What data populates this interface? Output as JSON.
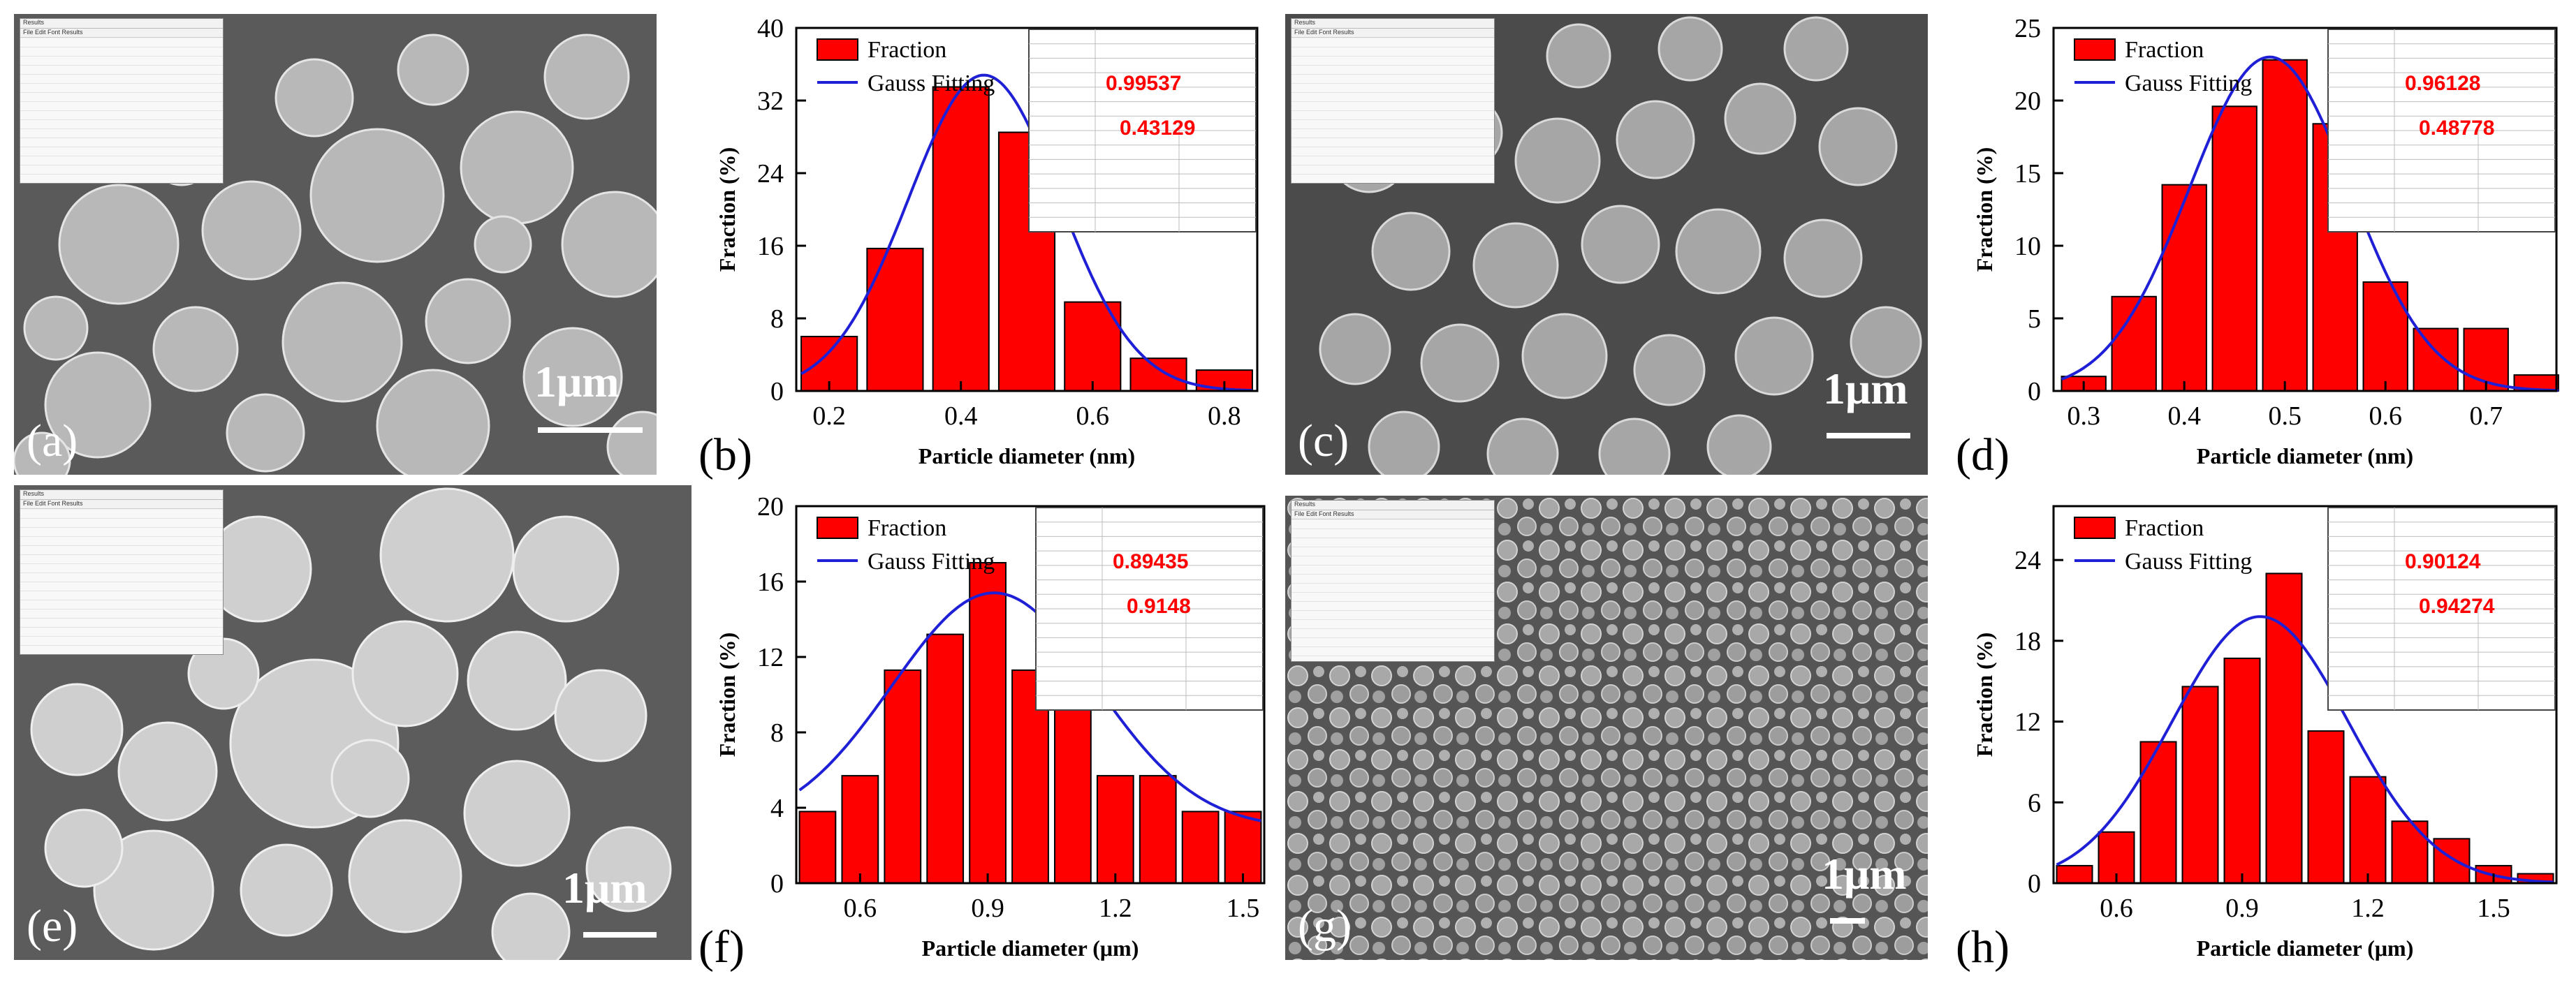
{
  "panels": [
    {
      "id": "a",
      "type": "sem",
      "label": "(a)",
      "scale_text": "1μm"
    },
    {
      "id": "b",
      "type": "chart",
      "label": "(b)"
    },
    {
      "id": "c",
      "type": "sem",
      "label": "(c)",
      "scale_text": "1μm"
    },
    {
      "id": "d",
      "type": "chart",
      "label": "(d)"
    },
    {
      "id": "e",
      "type": "sem",
      "label": "(e)",
      "scale_text": "1μm"
    },
    {
      "id": "f",
      "type": "chart",
      "label": "(f)"
    },
    {
      "id": "g",
      "type": "sem",
      "label": "(g)",
      "scale_text": "1μm"
    },
    {
      "id": "h",
      "type": "chart",
      "label": "(h)"
    }
  ],
  "results_window": {
    "title": "Results",
    "menu": "File  Edit  Font  Results"
  },
  "colors": {
    "bar": "#ff0000",
    "bar_edge": "#000000",
    "fit": "#1f1fd6",
    "annotation": "#ff0000"
  },
  "chart_data": [
    {
      "panel": "b",
      "type": "bar",
      "x": [
        0.2,
        0.3,
        0.4,
        0.5,
        0.6,
        0.7,
        0.8
      ],
      "values": [
        6,
        15.7,
        33.5,
        28.5,
        9.8,
        3.6,
        2.3
      ],
      "bar_width": 0.085,
      "fit": {
        "mu": 0.435,
        "sigma": 0.115,
        "amplitude": 34.8,
        "offset": 0
      },
      "xlabel": "Particle diameter (nm)",
      "ylabel": "Fraction (%)",
      "xlim": [
        0.15,
        0.85
      ],
      "ylim": [
        0,
        40
      ],
      "xticks": [
        0.2,
        0.4,
        0.6,
        0.8
      ],
      "xtick_labels": [
        "0.2",
        "0.4",
        "0.6",
        "0.8"
      ],
      "yticks": [
        0,
        8,
        16,
        24,
        32,
        40
      ],
      "ytick_labels": [
        "0",
        "8",
        "16",
        "24",
        "32",
        "40"
      ],
      "legend": [
        "Fraction",
        "Gauss Fitting"
      ],
      "r_squared": "0.99537",
      "annotation_value": "0.43129"
    },
    {
      "panel": "d",
      "type": "bar",
      "x": [
        0.3,
        0.35,
        0.4,
        0.45,
        0.5,
        0.55,
        0.6,
        0.65,
        0.7,
        0.75
      ],
      "values": [
        1,
        6.5,
        14.2,
        19.6,
        22.8,
        18.4,
        7.5,
        4.3,
        4.3,
        1.1
      ],
      "bar_width": 0.044,
      "fit": {
        "mu": 0.485,
        "sigma": 0.08,
        "amplitude": 23,
        "offset": 0
      },
      "xlabel": "Particle diameter (nm)",
      "ylabel": "Fraction (%)",
      "xlim": [
        0.27,
        0.77
      ],
      "ylim": [
        0,
        25
      ],
      "xticks": [
        0.3,
        0.4,
        0.5,
        0.6,
        0.7
      ],
      "xtick_labels": [
        "0.3",
        "0.4",
        "0.5",
        "0.6",
        "0.7"
      ],
      "yticks": [
        0,
        5,
        10,
        15,
        20,
        25
      ],
      "ytick_labels": [
        "0",
        "5",
        "10",
        "15",
        "20",
        "25"
      ],
      "legend": [
        "Fraction",
        "Gauss Fitting"
      ],
      "r_squared": "0.96128",
      "annotation_value": "0.48778"
    },
    {
      "panel": "f",
      "type": "bar",
      "x": [
        0.5,
        0.6,
        0.7,
        0.8,
        0.9,
        1.0,
        1.1,
        1.2,
        1.3,
        1.4,
        1.5
      ],
      "values": [
        3.8,
        5.7,
        11.3,
        13.2,
        17,
        11.3,
        13.2,
        5.7,
        5.7,
        3.8,
        3.8
      ],
      "bar_width": 0.085,
      "fit": {
        "mu": 0.915,
        "sigma": 0.24,
        "amplitude": 12.5,
        "offset": 2.9
      },
      "xlabel": "Particle diameter (μm)",
      "ylabel": "Fraction (%)",
      "xlim": [
        0.45,
        1.55
      ],
      "ylim": [
        0,
        20
      ],
      "xticks": [
        0.6,
        0.9,
        1.2,
        1.5
      ],
      "xtick_labels": [
        "0.6",
        "0.9",
        "1.2",
        "1.5"
      ],
      "yticks": [
        0,
        4,
        8,
        12,
        16,
        20
      ],
      "ytick_labels": [
        "0",
        "4",
        "8",
        "12",
        "16",
        "20"
      ],
      "legend": [
        "Fraction",
        "Gauss Fitting"
      ],
      "r_squared": "0.89435",
      "annotation_value": "0.9148"
    },
    {
      "panel": "h",
      "type": "bar",
      "x": [
        0.5,
        0.6,
        0.7,
        0.8,
        0.9,
        1.0,
        1.1,
        1.2,
        1.3,
        1.4,
        1.5,
        1.6
      ],
      "values": [
        1.3,
        3.8,
        10.5,
        14.6,
        16.7,
        23,
        11.3,
        7.9,
        4.6,
        3.3,
        1.3,
        0.7
      ],
      "bar_width": 0.085,
      "fit": {
        "mu": 0.943,
        "sigma": 0.21,
        "amplitude": 19.8,
        "offset": 0
      },
      "xlabel": "Particle diameter (μm)",
      "ylabel": "Fraction (%)",
      "xlim": [
        0.45,
        1.65
      ],
      "ylim": [
        0,
        28
      ],
      "xticks": [
        0.6,
        0.9,
        1.2,
        1.5
      ],
      "xtick_labels": [
        "0.6",
        "0.9",
        "1.2",
        "1.5"
      ],
      "yticks": [
        0,
        6,
        12,
        18,
        24
      ],
      "ytick_labels": [
        "0",
        "6",
        "12",
        "18",
        "24"
      ],
      "legend": [
        "Fraction",
        "Gauss Fitting"
      ],
      "r_squared": "0.90124",
      "annotation_value": "0.94274"
    }
  ]
}
